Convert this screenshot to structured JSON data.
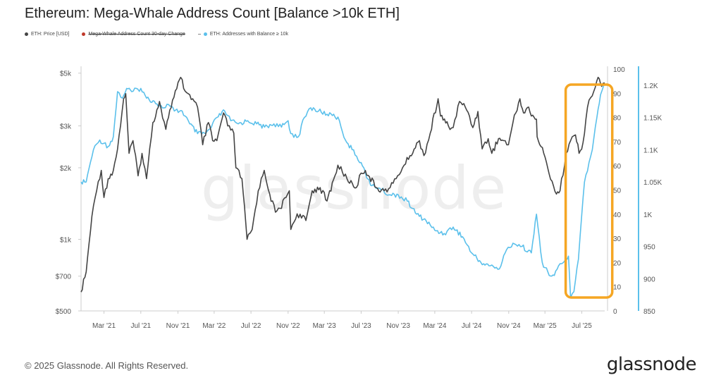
{
  "header": {
    "title": "Ethereum: Mega-Whale Address Count [Balance >10k ETH]"
  },
  "legend": [
    {
      "label": "ETH: Price [USD]",
      "color": "#444444",
      "struck": false
    },
    {
      "label": "Mega-Whale Address Count 30-day Change",
      "color": "#c0392b",
      "struck": true
    },
    {
      "label": "ETH: Addresses with Balance ≥ 10k",
      "color": "#5bc0eb",
      "struck": false
    }
  ],
  "watermark": "glassnode",
  "footer": {
    "copyright": "© 2025 Glassnode. All Rights Reserved.",
    "brand": "glassnode"
  },
  "colors": {
    "price": "#444444",
    "addresses": "#5bc0eb",
    "highlight": "#f5a623",
    "change": "#c0392b"
  },
  "chart_data": {
    "type": "line",
    "title": "Ethereum: Mega-Whale Address Count [Balance >10k ETH]",
    "x_ticks": [
      "Mar '21",
      "Jul '21",
      "Nov '21",
      "Mar '22",
      "Jul '22",
      "Nov '22",
      "Mar '23",
      "Jul '23",
      "Nov '23",
      "Mar '24",
      "Jul '24",
      "Nov '24",
      "Mar '25",
      "Jul '25"
    ],
    "x_range": [
      "2020-12-15",
      "2025-09-15"
    ],
    "y_left": {
      "scale": "log",
      "ticks": [
        "$500",
        "$700",
        "$1k",
        "$2k",
        "$3k",
        "$5k"
      ],
      "tick_values": [
        500,
        700,
        1000,
        2000,
        3000,
        5000
      ],
      "range": [
        500,
        5200
      ]
    },
    "y_mid": {
      "ticks": [
        "0",
        "10",
        "20",
        "30",
        "40",
        "50",
        "60",
        "70",
        "80",
        "90",
        "100"
      ],
      "tick_values": [
        0,
        10,
        20,
        30,
        40,
        50,
        60,
        70,
        80,
        90,
        100
      ],
      "range": [
        0,
        100
      ]
    },
    "y_right": {
      "ticks": [
        "850",
        "900",
        "950",
        "1K",
        "1.05K",
        "1.1K",
        "1.15K",
        "1.2K"
      ],
      "tick_values": [
        850,
        900,
        950,
        1000,
        1050,
        1100,
        1150,
        1200
      ],
      "range": [
        850,
        1225
      ]
    },
    "series": [
      {
        "name": "ETH: Price [USD]",
        "axis": "left",
        "points": [
          [
            "2020-12-15",
            600
          ],
          [
            "2021-01-01",
            730
          ],
          [
            "2021-01-20",
            1250
          ],
          [
            "2021-02-10",
            1750
          ],
          [
            "2021-02-20",
            1950
          ],
          [
            "2021-03-01",
            1500
          ],
          [
            "2021-03-15",
            1800
          ],
          [
            "2021-04-01",
            1950
          ],
          [
            "2021-04-15",
            2400
          ],
          [
            "2021-05-05",
            3900
          ],
          [
            "2021-05-12",
            4100
          ],
          [
            "2021-05-23",
            2300
          ],
          [
            "2021-06-05",
            2600
          ],
          [
            "2021-06-22",
            1850
          ],
          [
            "2021-07-05",
            2300
          ],
          [
            "2021-07-20",
            1800
          ],
          [
            "2021-08-10",
            3100
          ],
          [
            "2021-09-01",
            3800
          ],
          [
            "2021-09-22",
            2900
          ],
          [
            "2021-10-05",
            3500
          ],
          [
            "2021-10-28",
            4300
          ],
          [
            "2021-11-10",
            4800
          ],
          [
            "2021-11-25",
            4200
          ],
          [
            "2021-12-05",
            4100
          ],
          [
            "2021-12-20",
            3900
          ],
          [
            "2022-01-05",
            3600
          ],
          [
            "2022-01-22",
            2500
          ],
          [
            "2022-02-10",
            3100
          ],
          [
            "2022-02-24",
            2600
          ],
          [
            "2022-03-10",
            2600
          ],
          [
            "2022-04-01",
            3400
          ],
          [
            "2022-04-15",
            3000
          ],
          [
            "2022-05-05",
            2800
          ],
          [
            "2022-05-12",
            2000
          ],
          [
            "2022-06-01",
            1800
          ],
          [
            "2022-06-18",
            1000
          ],
          [
            "2022-07-05",
            1100
          ],
          [
            "2022-07-25",
            1600
          ],
          [
            "2022-08-14",
            1950
          ],
          [
            "2022-09-01",
            1550
          ],
          [
            "2022-09-20",
            1300
          ],
          [
            "2022-10-05",
            1350
          ],
          [
            "2022-10-25",
            1500
          ],
          [
            "2022-11-05",
            1600
          ],
          [
            "2022-11-10",
            1100
          ],
          [
            "2022-12-01",
            1280
          ],
          [
            "2022-12-30",
            1200
          ],
          [
            "2023-01-20",
            1600
          ],
          [
            "2023-02-15",
            1650
          ],
          [
            "2023-03-10",
            1450
          ],
          [
            "2023-04-05",
            1850
          ],
          [
            "2023-04-15",
            2050
          ],
          [
            "2023-05-15",
            1800
          ],
          [
            "2023-06-15",
            1650
          ],
          [
            "2023-07-01",
            1900
          ],
          [
            "2023-07-15",
            1950
          ],
          [
            "2023-08-20",
            1650
          ],
          [
            "2023-09-15",
            1600
          ],
          [
            "2023-10-05",
            1650
          ],
          [
            "2023-10-25",
            1800
          ],
          [
            "2023-11-15",
            2000
          ],
          [
            "2023-12-10",
            2250
          ],
          [
            "2024-01-10",
            2600
          ],
          [
            "2024-01-25",
            2250
          ],
          [
            "2024-02-15",
            2800
          ],
          [
            "2024-03-12",
            3900
          ],
          [
            "2024-03-20",
            3300
          ],
          [
            "2024-04-15",
            3000
          ],
          [
            "2024-05-01",
            2950
          ],
          [
            "2024-05-22",
            3800
          ],
          [
            "2024-06-10",
            3600
          ],
          [
            "2024-06-24",
            3300
          ],
          [
            "2024-07-05",
            2950
          ],
          [
            "2024-07-22",
            3450
          ],
          [
            "2024-08-05",
            2400
          ],
          [
            "2024-08-25",
            2650
          ],
          [
            "2024-09-06",
            2300
          ],
          [
            "2024-09-28",
            2650
          ],
          [
            "2024-10-15",
            2600
          ],
          [
            "2024-10-31",
            2500
          ],
          [
            "2024-11-15",
            3100
          ],
          [
            "2024-12-08",
            3900
          ],
          [
            "2024-12-20",
            3400
          ],
          [
            "2025-01-06",
            3600
          ],
          [
            "2025-01-15",
            3300
          ],
          [
            "2025-02-01",
            3200
          ],
          [
            "2025-02-03",
            2700
          ],
          [
            "2025-02-25",
            2300
          ],
          [
            "2025-03-10",
            2000
          ],
          [
            "2025-04-08",
            1550
          ],
          [
            "2025-04-20",
            1600
          ],
          [
            "2025-05-10",
            2300
          ],
          [
            "2025-05-25",
            2600
          ],
          [
            "2025-06-10",
            2750
          ],
          [
            "2025-06-22",
            2300
          ],
          [
            "2025-07-05",
            2550
          ],
          [
            "2025-07-20",
            3600
          ],
          [
            "2025-08-10",
            4200
          ],
          [
            "2025-08-24",
            4800
          ],
          [
            "2025-09-05",
            4400
          ],
          [
            "2025-09-15",
            4550
          ]
        ]
      },
      {
        "name": "ETH: Addresses with Balance ≥ 10k",
        "axis": "right",
        "points": [
          [
            "2020-12-15",
            1050
          ],
          [
            "2021-01-01",
            1050
          ],
          [
            "2021-01-10",
            1070
          ],
          [
            "2021-01-25",
            1100
          ],
          [
            "2021-02-15",
            1115
          ],
          [
            "2021-03-01",
            1110
          ],
          [
            "2021-03-15",
            1105
          ],
          [
            "2021-04-01",
            1120
          ],
          [
            "2021-04-15",
            1190
          ],
          [
            "2021-05-01",
            1180
          ],
          [
            "2021-05-15",
            1195
          ],
          [
            "2021-06-01",
            1190
          ],
          [
            "2021-07-01",
            1195
          ],
          [
            "2021-07-20",
            1180
          ],
          [
            "2021-08-15",
            1175
          ],
          [
            "2021-09-10",
            1165
          ],
          [
            "2021-10-01",
            1170
          ],
          [
            "2021-10-20",
            1160
          ],
          [
            "2021-11-15",
            1160
          ],
          [
            "2021-12-10",
            1140
          ],
          [
            "2022-01-05",
            1125
          ],
          [
            "2022-02-01",
            1125
          ],
          [
            "2022-02-20",
            1135
          ],
          [
            "2022-03-10",
            1150
          ],
          [
            "2022-04-05",
            1160
          ],
          [
            "2022-04-25",
            1145
          ],
          [
            "2022-05-20",
            1140
          ],
          [
            "2022-06-20",
            1145
          ],
          [
            "2022-07-20",
            1140
          ],
          [
            "2022-08-15",
            1135
          ],
          [
            "2022-09-15",
            1140
          ],
          [
            "2022-10-10",
            1135
          ],
          [
            "2022-11-01",
            1145
          ],
          [
            "2022-11-10",
            1125
          ],
          [
            "2022-12-05",
            1120
          ],
          [
            "2022-12-25",
            1150
          ],
          [
            "2023-01-15",
            1165
          ],
          [
            "2023-02-10",
            1160
          ],
          [
            "2023-03-10",
            1155
          ],
          [
            "2023-04-01",
            1155
          ],
          [
            "2023-04-20",
            1145
          ],
          [
            "2023-05-10",
            1115
          ],
          [
            "2023-06-01",
            1100
          ],
          [
            "2023-07-01",
            1080
          ],
          [
            "2023-08-01",
            1045
          ],
          [
            "2023-09-01",
            1040
          ],
          [
            "2023-10-01",
            1030
          ],
          [
            "2023-11-01",
            1030
          ],
          [
            "2023-12-01",
            1020
          ],
          [
            "2024-01-01",
            1000
          ],
          [
            "2024-02-01",
            990
          ],
          [
            "2024-03-01",
            975
          ],
          [
            "2024-04-01",
            970
          ],
          [
            "2024-05-01",
            980
          ],
          [
            "2024-06-01",
            965
          ],
          [
            "2024-07-01",
            940
          ],
          [
            "2024-08-01",
            925
          ],
          [
            "2024-09-01",
            920
          ],
          [
            "2024-10-01",
            915
          ],
          [
            "2024-10-25",
            945
          ],
          [
            "2024-11-15",
            955
          ],
          [
            "2024-12-15",
            950
          ],
          [
            "2025-01-15",
            940
          ],
          [
            "2025-02-01",
            1000
          ],
          [
            "2025-02-10",
            965
          ],
          [
            "2025-02-20",
            925
          ],
          [
            "2025-03-15",
            905
          ],
          [
            "2025-04-01",
            905
          ],
          [
            "2025-04-15",
            920
          ],
          [
            "2025-05-01",
            925
          ],
          [
            "2025-05-18",
            935
          ],
          [
            "2025-05-25",
            870
          ],
          [
            "2025-06-05",
            880
          ],
          [
            "2025-06-20",
            930
          ],
          [
            "2025-07-01",
            1000
          ],
          [
            "2025-07-10",
            1050
          ],
          [
            "2025-07-25",
            1080
          ],
          [
            "2025-08-05",
            1100
          ],
          [
            "2025-08-20",
            1150
          ],
          [
            "2025-09-01",
            1185
          ],
          [
            "2025-09-12",
            1200
          ]
        ]
      }
    ],
    "annotation": {
      "type": "highlight-box",
      "from": "2025-05-18",
      "to": "2025-09-12",
      "color": "#f5a623"
    },
    "legend_position": "top-left",
    "grid": false
  }
}
